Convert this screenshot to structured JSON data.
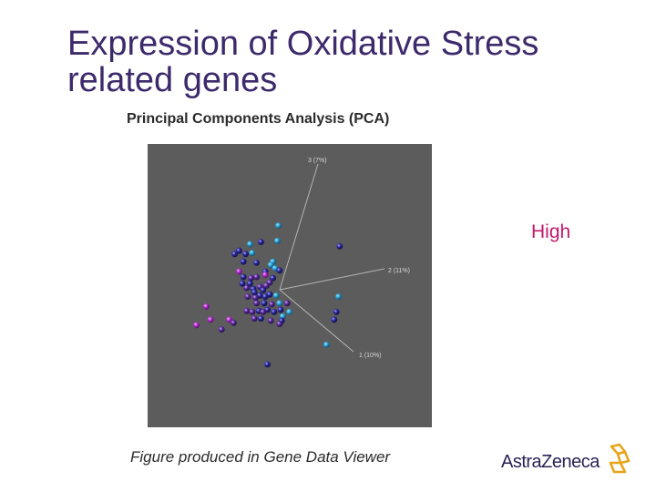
{
  "slide": {
    "title_line1": "Expression of Oxidative Stress",
    "title_line2": "related genes",
    "subtitle": "Principal Components Analysis (PCA)",
    "legend_high": "High",
    "caption": "Figure produced in Gene Data Viewer",
    "logo_text": "AstraZeneca"
  },
  "colors": {
    "title": "#3d2a6b",
    "plot_background": "#5c5c5c",
    "high_label": "#c0196b",
    "axis": "#b4b4b4",
    "point_cyan": "#2fa6d6",
    "point_blue": "#2c2a9e",
    "point_purple": "#5a2a9a",
    "point_magenta": "#b62fd2",
    "logo_text": "#2a2356",
    "logo_mark": "#e8a51c"
  },
  "chart_data": {
    "type": "scatter",
    "title": "Principal Components Analysis (PCA)",
    "projection": "3d",
    "axes": [
      {
        "name": "1",
        "label": "1 (10%)"
      },
      {
        "name": "2",
        "label": "2 (11%)"
      },
      {
        "name": "3",
        "label": "3 (7%)"
      }
    ],
    "color_scale": {
      "high_label": "High"
    },
    "points": [
      {
        "x": 78,
        "y": 92,
        "z": 44,
        "group": "cyan"
      },
      {
        "x": 77,
        "y": 78,
        "z": 48,
        "group": "cyan"
      },
      {
        "x": 62,
        "y": 77,
        "z": 50,
        "group": "blue"
      },
      {
        "x": 52,
        "y": 75,
        "z": 51,
        "group": "cyan"
      },
      {
        "x": 42,
        "y": 69,
        "z": 54,
        "group": "blue"
      },
      {
        "x": 38,
        "y": 66,
        "z": 55,
        "group": "blue"
      },
      {
        "x": 48,
        "y": 66,
        "z": 55,
        "group": "blue"
      },
      {
        "x": 54,
        "y": 67,
        "z": 54,
        "group": "cyan"
      },
      {
        "x": 46,
        "y": 59,
        "z": 58,
        "group": "blue"
      },
      {
        "x": 58,
        "y": 58,
        "z": 58,
        "group": "blue"
      },
      {
        "x": 73,
        "y": 59,
        "z": 57,
        "group": "cyan"
      },
      {
        "x": 71,
        "y": 56,
        "z": 58,
        "group": "cyan"
      },
      {
        "x": 75,
        "y": 53,
        "z": 60,
        "group": "cyan"
      },
      {
        "x": 79,
        "y": 51,
        "z": 60,
        "group": "blue"
      },
      {
        "x": 66,
        "y": 50,
        "z": 61,
        "group": "blue"
      },
      {
        "x": 42,
        "y": 50,
        "z": 61,
        "group": "magenta"
      },
      {
        "x": 46,
        "y": 45,
        "z": 63,
        "group": "blue"
      },
      {
        "x": 53,
        "y": 44,
        "z": 64,
        "group": "purple"
      },
      {
        "x": 58,
        "y": 45,
        "z": 63,
        "group": "purple"
      },
      {
        "x": 66,
        "y": 47,
        "z": 62,
        "group": "magenta"
      },
      {
        "x": 73,
        "y": 44,
        "z": 63,
        "group": "blue"
      },
      {
        "x": 70,
        "y": 40,
        "z": 65,
        "group": "purple"
      },
      {
        "x": 52,
        "y": 39,
        "z": 65,
        "group": "blue"
      },
      {
        "x": 45,
        "y": 39,
        "z": 66,
        "group": "blue"
      },
      {
        "x": 49,
        "y": 35,
        "z": 67,
        "group": "purple"
      },
      {
        "x": 55,
        "y": 34,
        "z": 68,
        "group": "blue"
      },
      {
        "x": 61,
        "y": 36,
        "z": 67,
        "group": "purple"
      },
      {
        "x": 64,
        "y": 33,
        "z": 68,
        "group": "blue"
      },
      {
        "x": 67,
        "y": 37,
        "z": 66,
        "group": "purple"
      },
      {
        "x": 56,
        "y": 31,
        "z": 69,
        "group": "blue"
      },
      {
        "x": 50,
        "y": 27,
        "z": 71,
        "group": "purple"
      },
      {
        "x": 57,
        "y": 26,
        "z": 72,
        "group": "purple"
      },
      {
        "x": 61,
        "y": 28,
        "z": 71,
        "group": "blue"
      },
      {
        "x": 66,
        "y": 27,
        "z": 71,
        "group": "blue"
      },
      {
        "x": 70,
        "y": 29,
        "z": 70,
        "group": "blue"
      },
      {
        "x": 76,
        "y": 28,
        "z": 71,
        "group": "cyan"
      },
      {
        "x": 58,
        "y": 21,
        "z": 74,
        "group": "purple"
      },
      {
        "x": 65,
        "y": 21,
        "z": 74,
        "group": "blue"
      },
      {
        "x": 72,
        "y": 20,
        "z": 74,
        "group": "purple"
      },
      {
        "x": 79,
        "y": 21,
        "z": 74,
        "group": "cyan"
      },
      {
        "x": 86,
        "y": 21,
        "z": 74,
        "group": "purple"
      },
      {
        "x": 80,
        "y": 15,
        "z": 77,
        "group": "blue"
      },
      {
        "x": 88,
        "y": 13,
        "z": 78,
        "group": "cyan"
      },
      {
        "x": 49,
        "y": 14,
        "z": 77,
        "group": "purple"
      },
      {
        "x": 54,
        "y": 13,
        "z": 78,
        "group": "purple"
      },
      {
        "x": 60,
        "y": 14,
        "z": 77,
        "group": "blue"
      },
      {
        "x": 64,
        "y": 13,
        "z": 78,
        "group": "purple"
      },
      {
        "x": 68,
        "y": 15,
        "z": 77,
        "group": "blue"
      },
      {
        "x": 74,
        "y": 13,
        "z": 78,
        "group": "blue"
      },
      {
        "x": 62,
        "y": 7,
        "z": 81,
        "group": "blue"
      },
      {
        "x": 71,
        "y": 5,
        "z": 82,
        "group": "purple"
      },
      {
        "x": 82,
        "y": 9,
        "z": 80,
        "group": "cyan"
      },
      {
        "x": 81,
        "y": 5,
        "z": 82,
        "group": "blue"
      },
      {
        "x": 79,
        "y": 2,
        "z": 83,
        "group": "purple"
      },
      {
        "x": 37,
        "y": 3,
        "z": 83,
        "group": "purple"
      },
      {
        "x": 56,
        "y": 7,
        "z": 81,
        "group": "purple"
      },
      {
        "x": 26,
        "y": -3,
        "z": 86,
        "group": "purple"
      },
      {
        "x": 12,
        "y": 18,
        "z": 76,
        "group": "magenta"
      },
      {
        "x": 16,
        "y": 6,
        "z": 82,
        "group": "magenta"
      },
      {
        "x": 33,
        "y": 6,
        "z": 82,
        "group": "magenta"
      },
      {
        "x": 3,
        "y": 1,
        "z": 84,
        "group": "magenta"
      },
      {
        "x": 133,
        "y": 27,
        "z": 71,
        "group": "cyan"
      },
      {
        "x": 131,
        "y": 13,
        "z": 78,
        "group": "blue"
      },
      {
        "x": 129,
        "y": 6,
        "z": 82,
        "group": "blue"
      },
      {
        "x": 134,
        "y": 73,
        "z": 52,
        "group": "blue"
      },
      {
        "x": 68,
        "y": -35,
        "z": 102,
        "group": "blue"
      },
      {
        "x": 122,
        "y": -17,
        "z": 93,
        "group": "cyan"
      }
    ]
  }
}
